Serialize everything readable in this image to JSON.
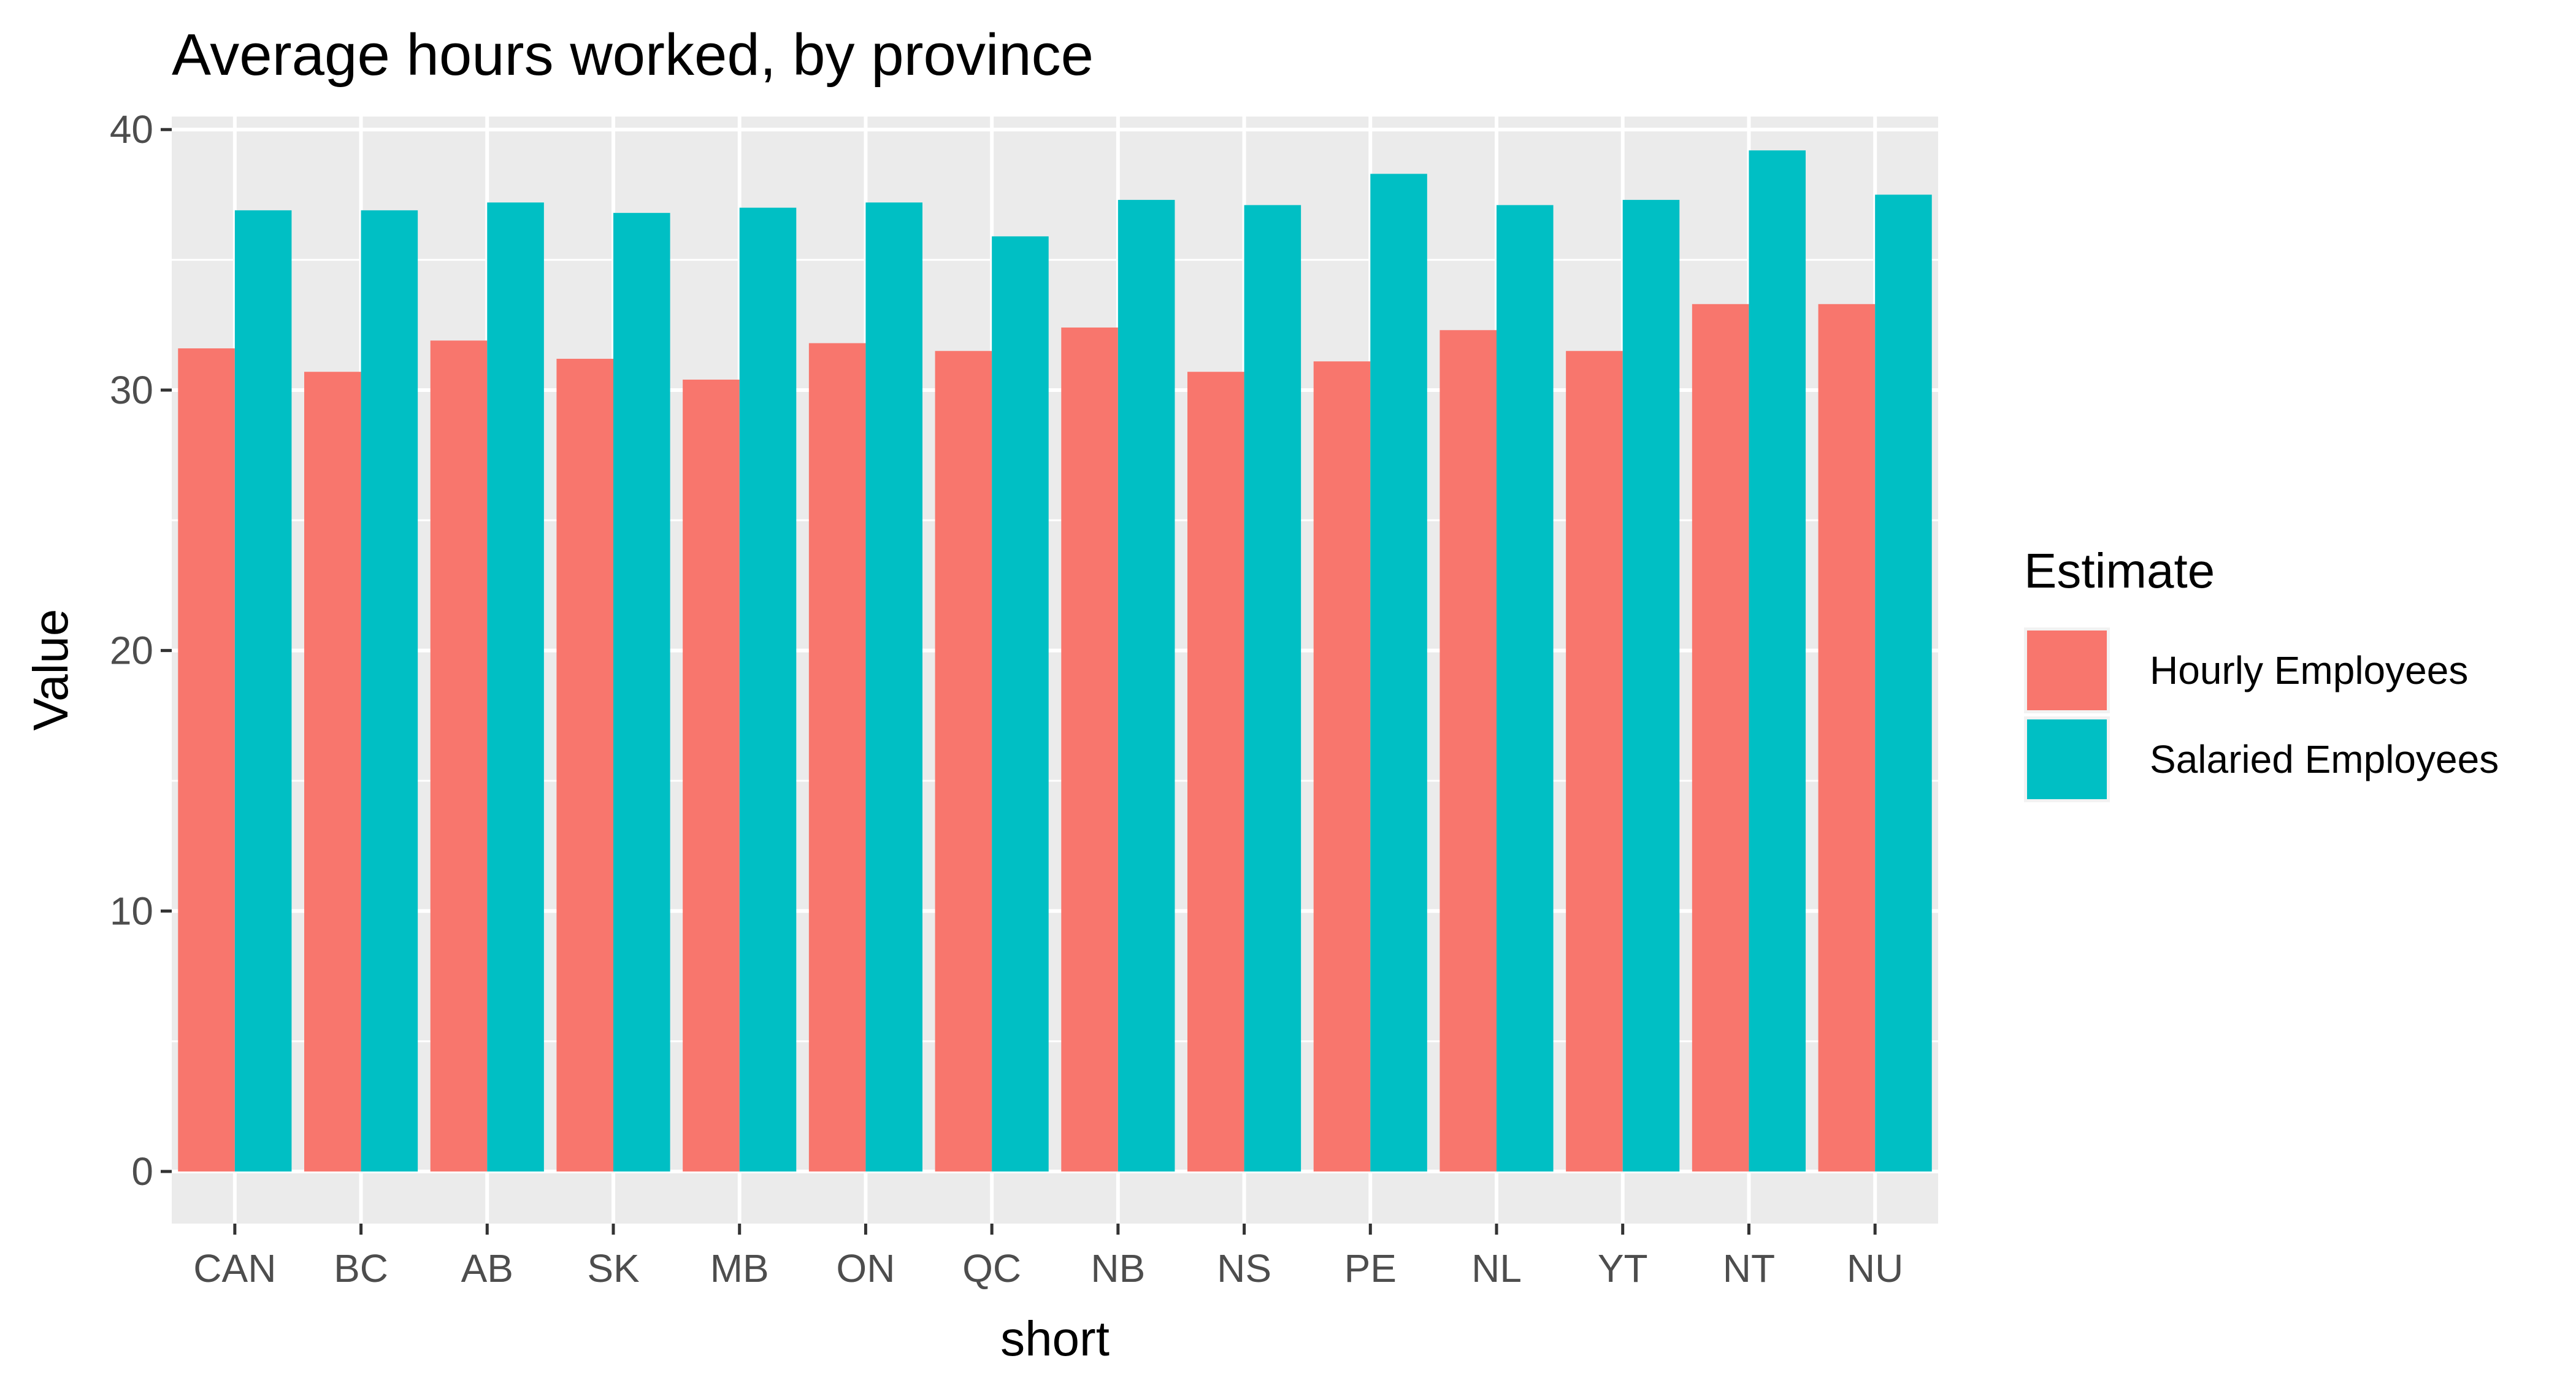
{
  "chart_data": {
    "type": "bar",
    "title": "Average hours worked, by province",
    "xlabel": "short",
    "ylabel": "Value",
    "ylim": [
      -2,
      40.5
    ],
    "yticks": [
      0,
      10,
      20,
      30,
      40
    ],
    "grid": true,
    "legend": {
      "title": "Estimate",
      "placement": "right"
    },
    "categories": [
      "CAN",
      "BC",
      "AB",
      "SK",
      "MB",
      "ON",
      "QC",
      "NB",
      "NS",
      "PE",
      "NL",
      "YT",
      "NT",
      "NU"
    ],
    "series": [
      {
        "name": "Hourly Employees",
        "color": "#F8766D",
        "values": [
          31.6,
          30.7,
          31.9,
          31.2,
          30.4,
          31.8,
          31.5,
          32.4,
          30.7,
          31.1,
          32.3,
          31.5,
          33.3,
          33.3
        ]
      },
      {
        "name": "Salaried Employees",
        "color": "#00BFC4",
        "values": [
          36.9,
          36.9,
          37.2,
          36.8,
          37.0,
          37.2,
          35.9,
          37.3,
          37.1,
          38.3,
          37.1,
          37.3,
          39.2,
          37.5
        ]
      }
    ]
  }
}
